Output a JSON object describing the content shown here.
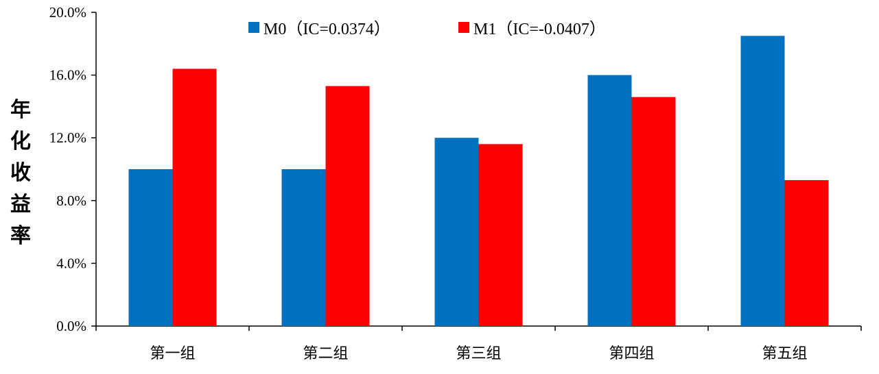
{
  "chart_data": {
    "type": "bar",
    "categories": [
      "第一组",
      "第二组",
      "第三组",
      "第四组",
      "第五组"
    ],
    "series": [
      {
        "name": "M0（IC=0.0374）",
        "color": "#0070C0",
        "values": [
          10.0,
          10.0,
          12.0,
          16.0,
          18.5
        ]
      },
      {
        "name": "M1（IC=-0.0407）",
        "color": "#FF0000",
        "values": [
          16.4,
          15.3,
          11.6,
          14.6,
          9.3
        ]
      }
    ],
    "ylabel": "年化收益率",
    "ylim": [
      0,
      20
    ],
    "yticks": [
      0,
      4,
      8,
      12,
      16,
      20
    ],
    "ytick_labels": [
      "0.0%",
      "4.0%",
      "8.0%",
      "12.0%",
      "16.0%",
      "20.0%"
    ],
    "legend_position": "top",
    "grid": false
  }
}
